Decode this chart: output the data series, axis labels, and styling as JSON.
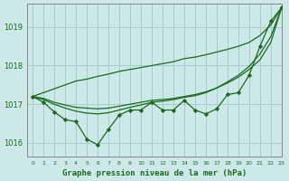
{
  "bg_color": "#cce8e8",
  "grid_color": "#aacccc",
  "line_color": "#1a6b1a",
  "marker_color": "#1a6b1a",
  "title": "Graphe pression niveau de la mer (hPa)",
  "title_color": "#1a6b1a",
  "xlim": [
    -0.5,
    23
  ],
  "ylim": [
    1015.65,
    1019.6
  ],
  "yticks": [
    1016,
    1017,
    1018,
    1019
  ],
  "xtick_labels": [
    "0",
    "1",
    "2",
    "3",
    "4",
    "5",
    "6",
    "7",
    "8",
    "9",
    "10",
    "11",
    "12",
    "13",
    "14",
    "15",
    "16",
    "17",
    "18",
    "19",
    "20",
    "21",
    "22",
    "23"
  ],
  "series_markers": [
    1017.2,
    1017.05,
    1016.8,
    1016.6,
    1016.55,
    1016.1,
    1015.95,
    1016.35,
    1016.72,
    1016.85,
    1016.85,
    1017.05,
    1016.85,
    1016.85,
    1017.1,
    1016.85,
    1016.75,
    1016.88,
    1017.25,
    1017.3,
    1017.75,
    1018.5,
    1019.15,
    1019.5
  ],
  "series_straight": [
    1017.2,
    1017.3,
    1017.4,
    1017.5,
    1017.6,
    1017.65,
    1017.72,
    1017.78,
    1017.85,
    1017.9,
    1017.95,
    1018.0,
    1018.05,
    1018.1,
    1018.18,
    1018.22,
    1018.28,
    1018.35,
    1018.42,
    1018.5,
    1018.6,
    1018.78,
    1019.05,
    1019.5
  ],
  "series_smooth1": [
    1017.2,
    1017.15,
    1017.05,
    1016.98,
    1016.92,
    1016.9,
    1016.88,
    1016.9,
    1016.95,
    1017.0,
    1017.05,
    1017.1,
    1017.12,
    1017.15,
    1017.2,
    1017.25,
    1017.32,
    1017.42,
    1017.55,
    1017.7,
    1017.9,
    1018.15,
    1018.6,
    1019.5
  ],
  "series_smooth2": [
    1017.2,
    1017.12,
    1017.0,
    1016.9,
    1016.82,
    1016.77,
    1016.75,
    1016.78,
    1016.85,
    1016.92,
    1016.98,
    1017.05,
    1017.08,
    1017.12,
    1017.18,
    1017.22,
    1017.3,
    1017.42,
    1017.58,
    1017.75,
    1017.98,
    1018.3,
    1018.75,
    1019.5
  ]
}
